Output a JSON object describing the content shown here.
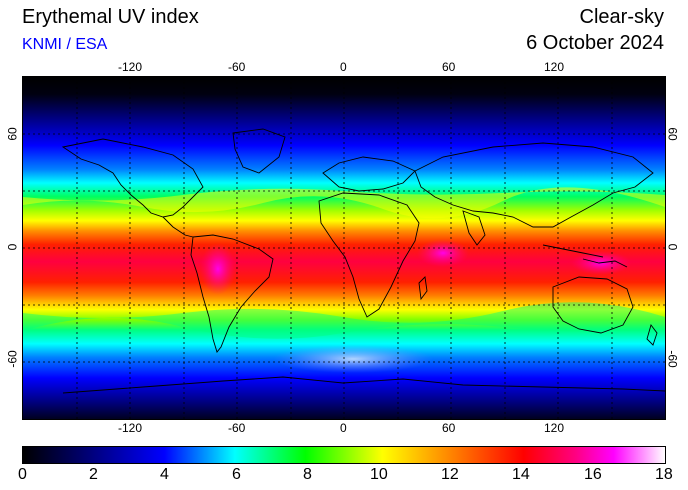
{
  "header": {
    "title": "Erythemal UV index",
    "credit": "KNMI / ESA",
    "product": "Clear-sky",
    "date": "6 October 2024"
  },
  "map": {
    "lon_ticks": [
      "-120",
      "-60",
      "0",
      "60",
      "120"
    ],
    "lat_ticks": [
      "60",
      "0",
      "-60"
    ],
    "lon_range": [
      -180,
      180
    ],
    "lat_range": [
      -90,
      90
    ],
    "grid": true
  },
  "colorbar": {
    "labels": [
      "0",
      "2",
      "4",
      "6",
      "8",
      "10",
      "12",
      "14",
      "16",
      "18"
    ],
    "range": [
      0,
      18
    ]
  },
  "colors": {
    "credit": "#0000ff",
    "scale": [
      "#000000",
      "#000080",
      "#0000ff",
      "#00ffff",
      "#00ff00",
      "#ffff00",
      "#ff8000",
      "#ff0000",
      "#ff0080",
      "#ff00ff",
      "#ffffff"
    ]
  }
}
